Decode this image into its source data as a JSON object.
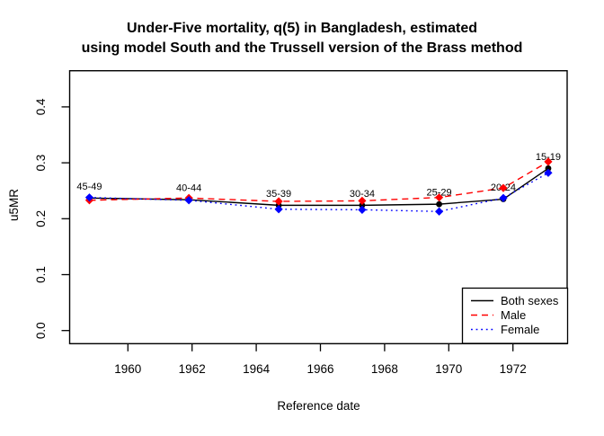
{
  "chart": {
    "title_line1": "Under-Five mortality, q(5) in Bangladesh, estimated",
    "title_line2": "using model South and the Trussell version of the Brass method",
    "xlabel": "Reference date",
    "ylabel": "u5MR"
  },
  "chart_data": {
    "type": "line",
    "title": "Under-Five mortality, q(5) in Bangladesh, estimated using model South and the Trussell version of the Brass method",
    "xlabel": "Reference date",
    "ylabel": "u5MR",
    "x_ticks": [
      "1960",
      "1962",
      "1964",
      "1966",
      "1968",
      "1970",
      "1972"
    ],
    "y_ticks": [
      "0.0",
      "0.1",
      "0.2",
      "0.3",
      "0.4"
    ],
    "xlim": [
      1958.2,
      1973.7
    ],
    "ylim": [
      -0.024,
      0.465
    ],
    "grid": false,
    "legend_position": "bottom-right",
    "point_label_color": "#A020F0",
    "age_group_labels": [
      "45-49",
      "40-44",
      "35-39",
      "30-34",
      "25-29",
      "20-24",
      "15-19"
    ],
    "x": [
      1958.8,
      1961.9,
      1964.7,
      1967.3,
      1969.7,
      1971.7,
      1973.1
    ],
    "series": [
      {
        "name": "Both sexes",
        "color": "#000000",
        "line_style": "solid",
        "marker": "circle",
        "values": [
          0.237,
          0.234,
          0.224,
          0.224,
          0.226,
          0.235,
          0.29
        ]
      },
      {
        "name": "Male",
        "color": "#FF0000",
        "line_style": "dashed",
        "marker": "diamond",
        "values": [
          0.233,
          0.237,
          0.231,
          0.232,
          0.238,
          0.255,
          0.302
        ]
      },
      {
        "name": "Female",
        "color": "#0000FF",
        "line_style": "dotted",
        "marker": "diamond",
        "values": [
          0.238,
          0.233,
          0.217,
          0.216,
          0.213,
          0.237,
          0.282
        ]
      }
    ]
  }
}
